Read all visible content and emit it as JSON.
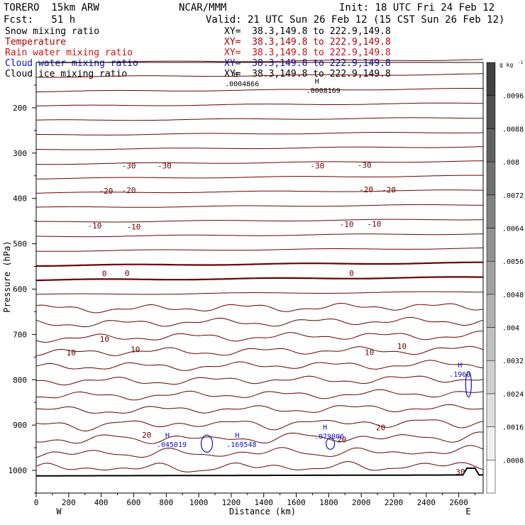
{
  "header": {
    "model": "TORERO  15km ARW",
    "center": "NCAR/MMM",
    "init": "Init: 18 UTC Fri 24 Feb 12",
    "fcst": "Fcst:   51 h",
    "valid": "Valid: 21 UTC Sun 26 Feb 12 (15 CST Sun 26 Feb 12)"
  },
  "fields": [
    {
      "name": "Snow mixing ratio",
      "xy": "XY=  38.3,149.8 to 222.9,149.8",
      "color": "#000000"
    },
    {
      "name": "Temperature",
      "xy": "XY=  38.3,149.8 to 222.9,149.8",
      "color": "#b00000"
    },
    {
      "name": "Rain water mixing ratio",
      "xy": "XY=  38.3,149.8 to 222.9,149.8",
      "color": "#d01010"
    },
    {
      "name": "Cloud water mixing ratio",
      "xy": "XY=  38.3,149.8 to 222.9,149.8",
      "color": "#1010c0"
    },
    {
      "name": "Cloud ice mixing ratio",
      "xy": "XY=  38.3,149.8 to 222.9,149.8",
      "color": "#000000"
    }
  ],
  "chart_data": {
    "type": "contour",
    "xlabel": "Distance (km)",
    "ylabel": "Pressure (hPa)",
    "xlim": [
      0,
      2750
    ],
    "ylim": [
      1050,
      100
    ],
    "x_ticks": [
      0,
      200,
      400,
      600,
      800,
      1000,
      1200,
      1400,
      1600,
      1800,
      2000,
      2200,
      2400,
      2600
    ],
    "y_ticks": [
      200,
      300,
      400,
      500,
      600,
      700,
      800,
      900,
      1000
    ],
    "x_end_labels": {
      "left": "W",
      "right": "E"
    },
    "colorbar": {
      "unit": "g kg",
      "unit_exponent": "-1",
      "ticks": [
        ".0008",
        ".0016",
        ".0024",
        ".0032",
        ".004",
        ".0048",
        ".0056",
        ".0064",
        ".0072",
        ".008",
        ".0088",
        ".0096"
      ],
      "bins": 13
    },
    "contour_labels": [
      {
        "text": "-30",
        "x": 570,
        "p": 328
      },
      {
        "text": "-30",
        "x": 790,
        "p": 328
      },
      {
        "text": "-30",
        "x": 1730,
        "p": 328
      },
      {
        "text": "-30",
        "x": 2020,
        "p": 326
      },
      {
        "text": "-20",
        "x": 430,
        "p": 383
      },
      {
        "text": "-20",
        "x": 570,
        "p": 382
      },
      {
        "text": "-20",
        "x": 2030,
        "p": 380
      },
      {
        "text": "-20",
        "x": 2170,
        "p": 381
      },
      {
        "text": "-10",
        "x": 360,
        "p": 460
      },
      {
        "text": "-10",
        "x": 600,
        "p": 462
      },
      {
        "text": "-10",
        "x": 1910,
        "p": 457
      },
      {
        "text": "-10",
        "x": 2080,
        "p": 456
      },
      {
        "text": "0",
        "x": 420,
        "p": 566
      },
      {
        "text": "0",
        "x": 560,
        "p": 565
      },
      {
        "text": "0",
        "x": 1940,
        "p": 565
      },
      {
        "text": "10",
        "x": 420,
        "p": 710
      },
      {
        "text": "10",
        "x": 215,
        "p": 740
      },
      {
        "text": "10",
        "x": 610,
        "p": 733
      },
      {
        "text": "10",
        "x": 2050,
        "p": 739
      },
      {
        "text": "10",
        "x": 2250,
        "p": 726
      },
      {
        "text": "20",
        "x": 680,
        "p": 922
      },
      {
        "text": "20",
        "x": 1880,
        "p": 932
      },
      {
        "text": "20",
        "x": 2120,
        "p": 905
      },
      {
        "text": "30",
        "x": 2610,
        "p": 1003
      }
    ],
    "max_labels": [
      {
        "text": ".045019",
        "x": 820,
        "p": 942
      },
      {
        "text": ".169548",
        "x": 1250,
        "p": 942
      },
      {
        "text": ".079806",
        "x": 1790,
        "p": 924
      },
      {
        "text": ".1968",
        "x": 2620,
        "p": 787
      },
      {
        "text": ".0004866",
        "x": 1240,
        "p": 146
      },
      {
        "text": ".0008169",
        "x": 1740,
        "p": 161
      }
    ]
  }
}
